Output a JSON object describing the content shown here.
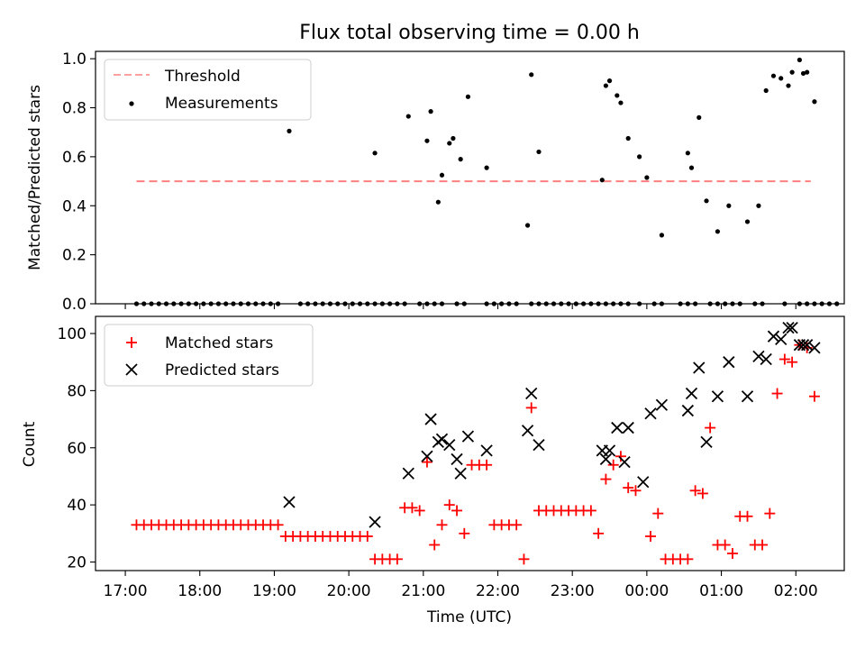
{
  "chart_data": [
    {
      "type": "scatter",
      "title": "Flux total observing time = 0.00 h",
      "xlabel": "",
      "ylabel": "Matched/Predicted stars",
      "ylim": [
        0,
        1.03
      ],
      "yticks": [
        0.0,
        0.2,
        0.4,
        0.6,
        0.8,
        1.0
      ],
      "ytick_labels": [
        "0.0",
        "0.2",
        "0.4",
        "0.6",
        "0.8",
        "1.0"
      ],
      "legend_position": "top-left",
      "threshold": {
        "name": "Threshold",
        "value": 0.5,
        "x_start": 17.15,
        "x_end": 26.2,
        "color": "#ff8080"
      },
      "series": [
        {
          "name": "Measurements",
          "color": "#000000",
          "x": [
            17.15,
            17.25,
            17.35,
            17.45,
            17.55,
            17.65,
            17.75,
            17.85,
            17.95,
            18.05,
            18.15,
            18.25,
            18.35,
            18.45,
            18.55,
            18.65,
            18.75,
            18.85,
            18.95,
            19.05,
            19.2,
            19.35,
            19.45,
            19.55,
            19.65,
            19.75,
            19.85,
            19.95,
            20.05,
            20.15,
            20.25,
            20.35,
            20.45,
            20.55,
            20.65,
            20.75,
            20.95,
            21.05,
            21.15,
            21.25,
            21.45,
            21.55,
            21.85,
            21.95,
            22.05,
            22.15,
            22.25,
            22.45,
            22.55,
            22.65,
            22.75,
            22.85,
            22.95,
            23.05,
            23.15,
            23.25,
            23.35,
            23.45,
            23.55,
            23.65,
            23.75,
            23.9,
            24.1,
            24.2,
            24.45,
            24.55,
            24.65,
            24.85,
            24.95,
            25.05,
            25.15,
            25.25,
            25.45,
            25.55,
            25.85,
            26.05,
            26.15,
            26.25,
            26.35,
            26.45,
            26.55,
            20.35,
            20.8,
            21.05,
            21.1,
            21.2,
            21.25,
            21.35,
            21.4,
            21.5,
            21.6,
            21.85,
            22.4,
            22.45,
            22.55,
            23.4,
            23.45,
            23.5,
            23.6,
            23.65,
            23.75,
            23.9,
            24.0,
            24.2,
            24.55,
            24.6,
            24.7,
            24.8,
            24.95,
            25.1,
            25.35,
            25.5,
            25.6,
            25.7,
            25.8,
            25.9,
            25.95,
            26.05,
            26.1,
            26.15,
            26.25
          ],
          "y": [
            0,
            0,
            0,
            0,
            0,
            0,
            0,
            0,
            0,
            0,
            0,
            0,
            0,
            0,
            0,
            0,
            0,
            0,
            0,
            0,
            0.705,
            0,
            0,
            0,
            0,
            0,
            0,
            0,
            0,
            0,
            0,
            0,
            0,
            0,
            0,
            0,
            0,
            0,
            0,
            0,
            0,
            0,
            0,
            0,
            0,
            0,
            0,
            0,
            0,
            0,
            0,
            0,
            0,
            0,
            0,
            0,
            0,
            0,
            0,
            0,
            0,
            0,
            0,
            0,
            0,
            0,
            0,
            0,
            0,
            0,
            0,
            0,
            0,
            0,
            0,
            0,
            0,
            0,
            0,
            0,
            0,
            0.615,
            0.765,
            0.665,
            0.785,
            0.415,
            0.525,
            0.655,
            0.675,
            0.59,
            0.845,
            0.555,
            0.32,
            0.935,
            0.62,
            0.505,
            0.89,
            0.91,
            0.85,
            0.82,
            0.675,
            0.6,
            0.515,
            0.28,
            0.615,
            0.555,
            0.76,
            0.42,
            0.295,
            0.4,
            0.335,
            0.4,
            0.87,
            0.93,
            0.92,
            0.89,
            0.945,
            0.995,
            0.94,
            0.945,
            0.825
          ]
        }
      ]
    },
    {
      "type": "scatter",
      "xlabel": "Time (UTC)",
      "ylabel": "Count",
      "ylim": [
        17,
        106
      ],
      "yticks": [
        20,
        40,
        60,
        80,
        100
      ],
      "ytick_labels": [
        "20",
        "40",
        "60",
        "80",
        "100"
      ],
      "legend_position": "top-left",
      "series": [
        {
          "name": "Matched stars",
          "marker": "plus",
          "color": "#ff0000",
          "x": [
            17.15,
            17.25,
            17.35,
            17.45,
            17.55,
            17.65,
            17.75,
            17.85,
            17.95,
            18.05,
            18.15,
            18.25,
            18.35,
            18.45,
            18.55,
            18.65,
            18.75,
            18.85,
            18.95,
            19.05,
            19.15,
            19.25,
            19.35,
            19.45,
            19.55,
            19.65,
            19.75,
            19.85,
            19.95,
            20.05,
            20.15,
            20.25,
            20.35,
            20.45,
            20.55,
            20.65,
            20.75,
            20.85,
            20.95,
            21.05,
            21.15,
            21.25,
            21.35,
            21.45,
            21.55,
            21.65,
            21.75,
            21.85,
            21.95,
            22.05,
            22.15,
            22.25,
            22.35,
            22.45,
            22.55,
            22.65,
            22.75,
            22.85,
            22.95,
            23.05,
            23.15,
            23.25,
            23.35,
            23.45,
            23.55,
            23.65,
            23.75,
            23.85,
            24.05,
            24.15,
            24.25,
            24.35,
            24.45,
            24.55,
            24.65,
            24.75,
            24.85,
            24.95,
            25.05,
            25.15,
            25.25,
            25.35,
            25.45,
            25.55,
            25.65,
            25.75,
            25.85,
            25.95,
            26.05,
            26.15,
            26.25
          ],
          "y": [
            33,
            33,
            33,
            33,
            33,
            33,
            33,
            33,
            33,
            33,
            33,
            33,
            33,
            33,
            33,
            33,
            33,
            33,
            33,
            33,
            29,
            29,
            29,
            29,
            29,
            29,
            29,
            29,
            29,
            29,
            29,
            29,
            21,
            21,
            21,
            21,
            39,
            39,
            38,
            55,
            26,
            33,
            40,
            38,
            30,
            54,
            54,
            54,
            33,
            33,
            33,
            33,
            21,
            74,
            38,
            38,
            38,
            38,
            38,
            38,
            38,
            38,
            30,
            49,
            54,
            57,
            46,
            45,
            29,
            37,
            21,
            21,
            21,
            21,
            45,
            44,
            67,
            26,
            26,
            23,
            36,
            36,
            26,
            26,
            37,
            79,
            91,
            90,
            96,
            95,
            78
          ]
        },
        {
          "name": "Predicted stars",
          "marker": "x",
          "color": "#000000",
          "x": [
            19.2,
            20.35,
            20.8,
            21.05,
            21.1,
            21.2,
            21.25,
            21.35,
            21.45,
            21.5,
            21.6,
            21.85,
            22.4,
            22.45,
            22.55,
            23.4,
            23.45,
            23.5,
            23.6,
            23.7,
            23.75,
            23.95,
            24.05,
            24.2,
            24.55,
            24.6,
            24.7,
            24.8,
            24.95,
            25.1,
            25.35,
            25.5,
            25.6,
            25.7,
            25.8,
            25.9,
            25.95,
            26.05,
            26.1,
            26.15,
            26.25
          ],
          "y": [
            41,
            34,
            51,
            57,
            70,
            62,
            63,
            61,
            56,
            51,
            64,
            59,
            66,
            79,
            61,
            59,
            56,
            59,
            67,
            55,
            67,
            48,
            72,
            75,
            73,
            79,
            88,
            62,
            78,
            90,
            78,
            92,
            91,
            99,
            98,
            102,
            102,
            96,
            96,
            96,
            95
          ]
        }
      ],
      "x_range": [
        16.6,
        26.65
      ],
      "xticks": [
        17,
        18,
        19,
        20,
        21,
        22,
        23,
        24,
        25,
        26
      ],
      "xtick_labels": [
        "17:00",
        "18:00",
        "19:00",
        "20:00",
        "21:00",
        "22:00",
        "23:00",
        "00:00",
        "01:00",
        "02:00"
      ]
    }
  ]
}
